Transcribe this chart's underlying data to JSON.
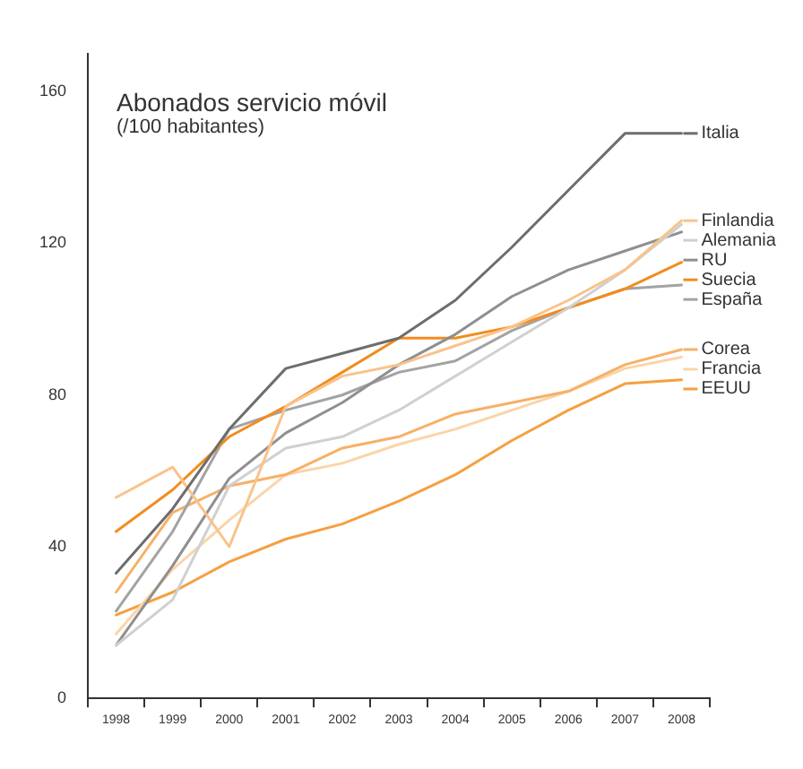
{
  "chart_data": {
    "type": "line",
    "title": "Abonados servicio móvil",
    "subtitle": "(/100 habitantes)",
    "categories": [
      "1998",
      "1999",
      "2000",
      "2001",
      "2002",
      "2003",
      "2004",
      "2005",
      "2006",
      "2007",
      "2008"
    ],
    "ylim": [
      0,
      170
    ],
    "yticks": [
      0,
      40,
      80,
      120,
      160
    ],
    "grid": false,
    "legend": "right",
    "marker": "none",
    "line_style": "solid",
    "series": [
      {
        "name": "Italia",
        "color": "#6d6d6d",
        "values": [
          33,
          50,
          71,
          87,
          91,
          95,
          105,
          119,
          134,
          149,
          149
        ]
      },
      {
        "name": "Finlandia",
        "color": "#f9c38a",
        "values": [
          53,
          61,
          40,
          77,
          85,
          88,
          93,
          98,
          105,
          113,
          126
        ]
      },
      {
        "name": "Alemania",
        "color": "#d0d0d0",
        "values": [
          14,
          26,
          56,
          66,
          69,
          76,
          85,
          94,
          103,
          113,
          125
        ]
      },
      {
        "name": "RU",
        "color": "#8f8f8f",
        "values": [
          14,
          35,
          58,
          70,
          78,
          88,
          96,
          106,
          113,
          118,
          123
        ]
      },
      {
        "name": "Suecia",
        "color": "#f28c1e",
        "values": [
          44,
          55,
          69,
          77,
          86,
          95,
          95,
          98,
          103,
          108,
          115
        ]
      },
      {
        "name": "España",
        "color": "#a3a3a3",
        "values": [
          23,
          44,
          71,
          76,
          80,
          86,
          89,
          97,
          103,
          108,
          109
        ]
      },
      {
        "name": "Corea",
        "color": "#f7b066",
        "values": [
          28,
          49,
          56,
          59,
          66,
          69,
          75,
          78,
          81,
          88,
          92
        ]
      },
      {
        "name": "Francia",
        "color": "#fbd4a8",
        "values": [
          17,
          34,
          47,
          59,
          62,
          67,
          71,
          76,
          81,
          87,
          90
        ]
      },
      {
        "name": "EEUU",
        "color": "#f5a040",
        "values": [
          22,
          28,
          36,
          42,
          46,
          52,
          59,
          68,
          76,
          83,
          84
        ]
      }
    ]
  }
}
